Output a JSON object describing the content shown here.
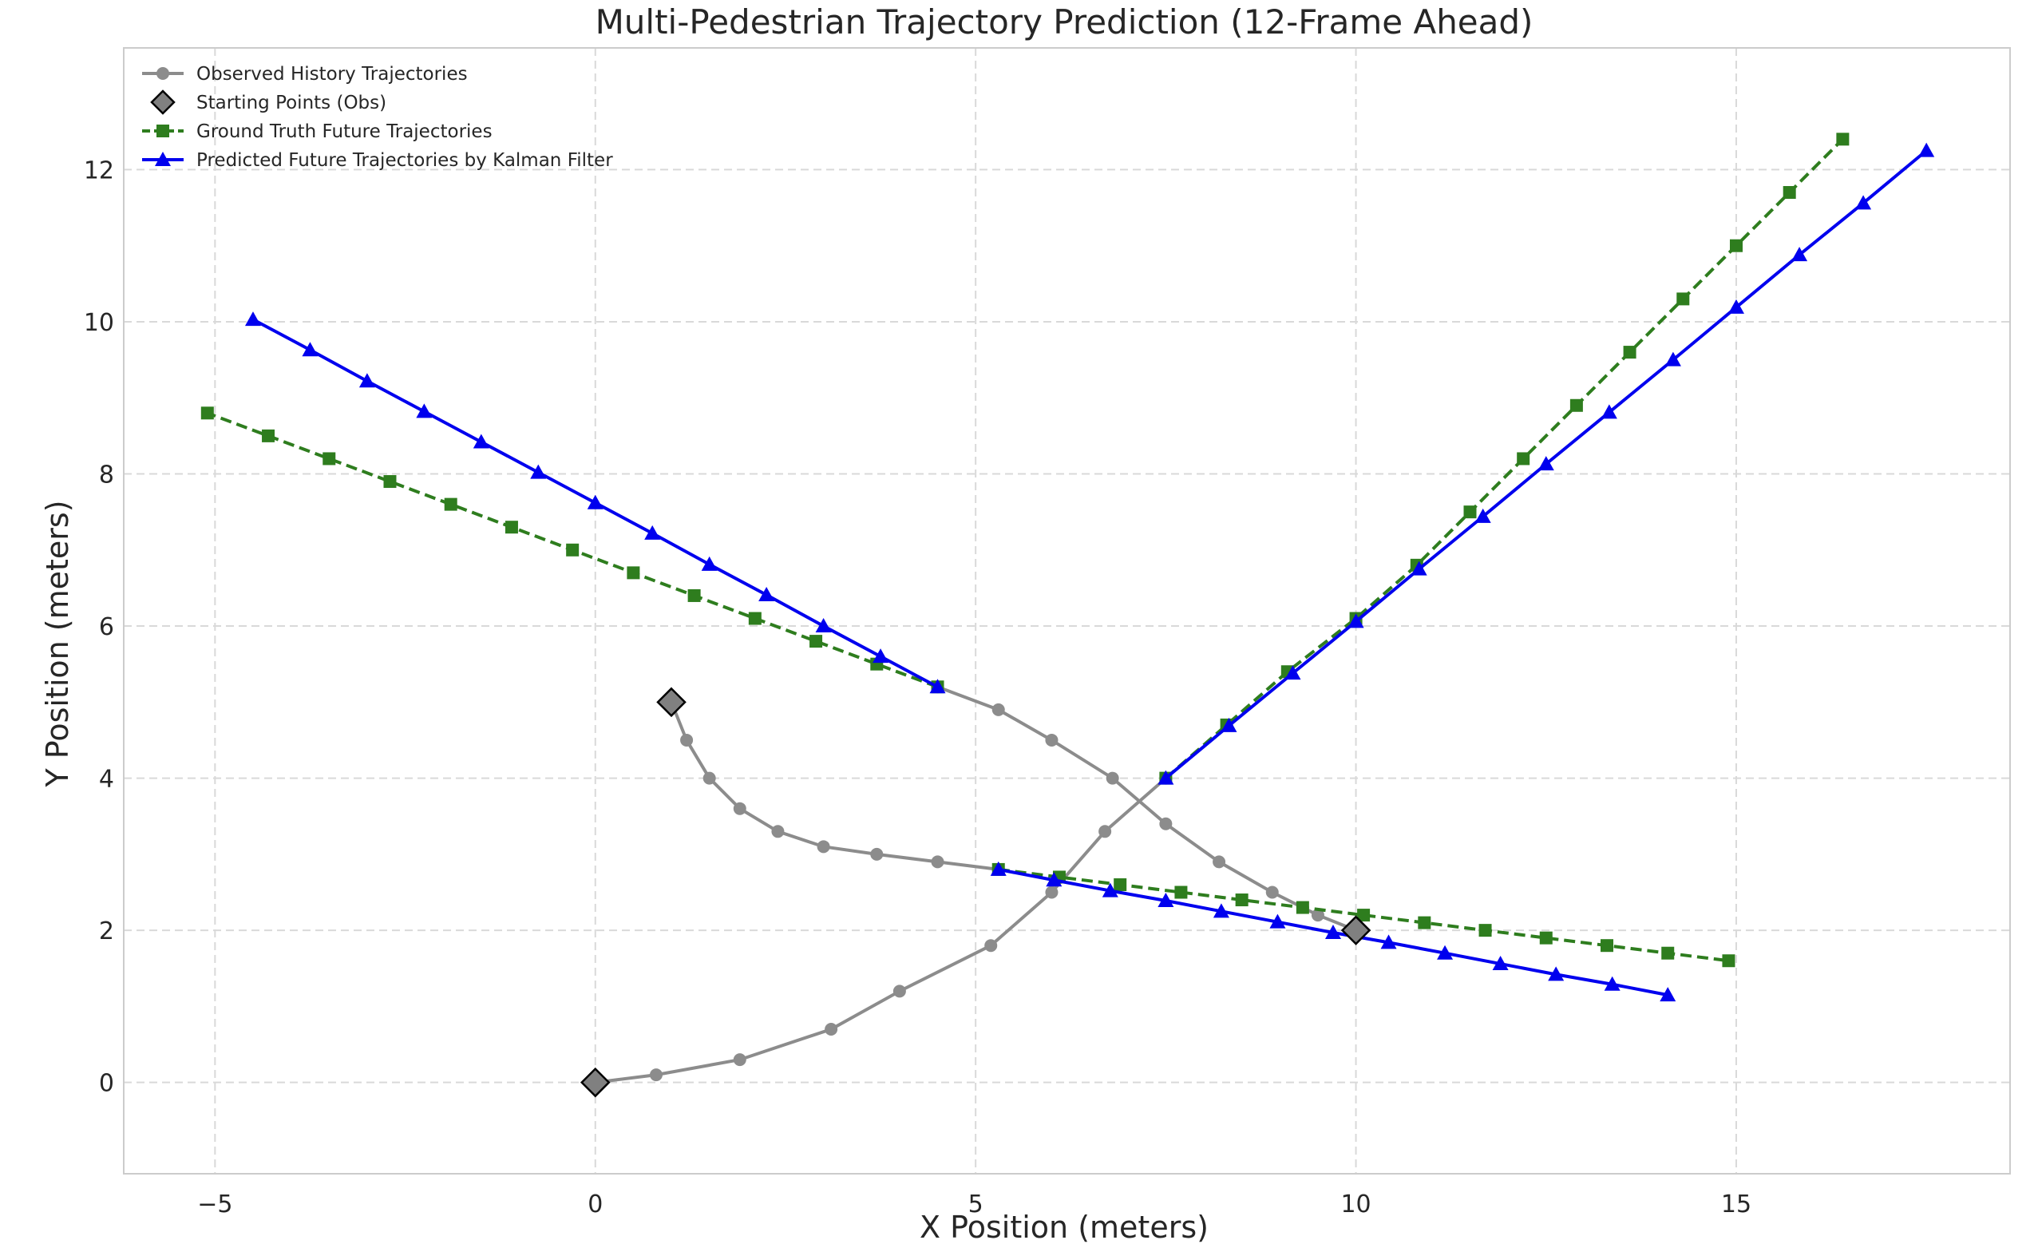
{
  "chart_data": {
    "type": "line",
    "title": "Multi-Pedestrian Trajectory Prediction (12-Frame Ahead)",
    "xlabel": "X Position (meters)",
    "ylabel": "Y Position (meters)",
    "xlim": [
      -6.2,
      18.6
    ],
    "ylim": [
      -1.2,
      13.6
    ],
    "xticks": [
      -5,
      0,
      5,
      10,
      15
    ],
    "xtick_labels": [
      "−5",
      "0",
      "5",
      "10",
      "15"
    ],
    "yticks": [
      0,
      2,
      4,
      6,
      8,
      10,
      12
    ],
    "ytick_labels": [
      "0",
      "2",
      "4",
      "6",
      "8",
      "10",
      "12"
    ],
    "grid": true,
    "legend_position": "top-left",
    "legend": [
      {
        "label": "Observed History Trajectories",
        "color": "#8c8c8c",
        "marker": "circle",
        "linestyle": "solid"
      },
      {
        "label": "Starting Points (Obs)",
        "color": "#808080",
        "marker": "diamond",
        "linestyle": "none"
      },
      {
        "label": "Ground Truth Future Trajectories",
        "color": "#2e7d1e",
        "marker": "square",
        "linestyle": "dashed"
      },
      {
        "label": "Predicted Future Trajectories by Kalman Filter",
        "color": "#0000ee",
        "marker": "triangle",
        "linestyle": "solid"
      }
    ],
    "series": [
      {
        "name": "Observed History Trajectories",
        "kind": "observed",
        "color": "#8c8c8c",
        "x": [
          0,
          0.8,
          1.9,
          3.1,
          4.0,
          5.2,
          6.0,
          6.7,
          7.5
        ],
        "y": [
          0,
          0.1,
          0.3,
          0.7,
          1.2,
          1.8,
          2.5,
          3.3,
          4.0
        ]
      },
      {
        "name": "Observed History Trajectories",
        "kind": "observed",
        "color": "#8c8c8c",
        "x": [
          10,
          9.5,
          8.9,
          8.2,
          7.5,
          6.8,
          6.0,
          5.3,
          4.5
        ],
        "y": [
          2.0,
          2.2,
          2.5,
          2.9,
          3.4,
          4.0,
          4.5,
          4.9,
          5.2
        ]
      },
      {
        "name": "Observed History Trajectories",
        "kind": "observed",
        "color": "#8c8c8c",
        "x": [
          1.0,
          1.2,
          1.5,
          1.9,
          2.4,
          3.0,
          3.7,
          4.5,
          5.3
        ],
        "y": [
          5.0,
          4.5,
          4.0,
          3.6,
          3.3,
          3.1,
          3.0,
          2.9,
          2.8
        ]
      },
      {
        "name": "Starting Points (Obs)",
        "kind": "start",
        "color": "#808080",
        "x": [
          0,
          10,
          1.0
        ],
        "y": [
          0,
          2.0,
          5.0
        ]
      },
      {
        "name": "Ground Truth Future Trajectories",
        "kind": "truth",
        "color": "#2e7d1e",
        "x": [
          7.5,
          8.3,
          9.1,
          10.0,
          10.8,
          11.5,
          12.2,
          12.9,
          13.6,
          14.3,
          15.0,
          15.7,
          16.4
        ],
        "y": [
          4.0,
          4.7,
          5.4,
          6.1,
          6.8,
          7.5,
          8.2,
          8.9,
          9.6,
          10.3,
          11.0,
          11.7,
          12.4
        ]
      },
      {
        "name": "Ground Truth Future Trajectories",
        "kind": "truth",
        "color": "#2e7d1e",
        "x": [
          4.5,
          3.7,
          2.9,
          2.1,
          1.3,
          0.5,
          -0.3,
          -1.1,
          -1.9,
          -2.7,
          -3.5,
          -4.3,
          -5.1
        ],
        "y": [
          5.2,
          5.5,
          5.8,
          6.1,
          6.4,
          6.7,
          7.0,
          7.3,
          7.6,
          7.9,
          8.2,
          8.5,
          8.8
        ]
      },
      {
        "name": "Ground Truth Future Trajectories",
        "kind": "truth",
        "color": "#2e7d1e",
        "x": [
          5.3,
          6.1,
          6.9,
          7.7,
          8.5,
          9.3,
          10.1,
          10.9,
          11.7,
          12.5,
          13.3,
          14.1,
          14.9
        ],
        "y": [
          2.8,
          2.7,
          2.6,
          2.5,
          2.4,
          2.3,
          2.2,
          2.1,
          2.0,
          1.9,
          1.8,
          1.7,
          1.6
        ]
      },
      {
        "name": "Predicted Future Trajectories by Kalman Filter",
        "kind": "pred",
        "color": "#0000ee",
        "x": [
          7.5,
          8.33,
          9.17,
          10.0,
          10.83,
          11.67,
          12.5,
          13.33,
          14.17,
          15.0,
          15.83,
          16.67,
          17.5
        ],
        "y": [
          4.0,
          4.69,
          5.38,
          6.06,
          6.75,
          7.44,
          8.13,
          8.81,
          9.5,
          10.19,
          10.88,
          11.56,
          12.25
        ]
      },
      {
        "name": "Predicted Future Trajectories by Kalman Filter",
        "kind": "pred",
        "color": "#0000ee",
        "x": [
          4.5,
          3.75,
          3.0,
          2.25,
          1.5,
          0.75,
          0.0,
          -0.75,
          -1.5,
          -2.25,
          -3.0,
          -3.75,
          -4.5
        ],
        "y": [
          5.2,
          5.6,
          6.0,
          6.41,
          6.81,
          7.22,
          7.62,
          8.02,
          8.42,
          8.82,
          9.22,
          9.63,
          10.03
        ]
      },
      {
        "name": "Predicted Future Trajectories by Kalman Filter",
        "kind": "pred",
        "color": "#0000ee",
        "x": [
          5.3,
          6.03,
          6.77,
          7.5,
          8.23,
          8.97,
          9.7,
          10.43,
          11.17,
          11.9,
          12.63,
          13.37,
          14.1
        ],
        "y": [
          2.8,
          2.66,
          2.52,
          2.39,
          2.25,
          2.11,
          1.97,
          1.84,
          1.7,
          1.56,
          1.42,
          1.29,
          1.15
        ]
      }
    ]
  }
}
